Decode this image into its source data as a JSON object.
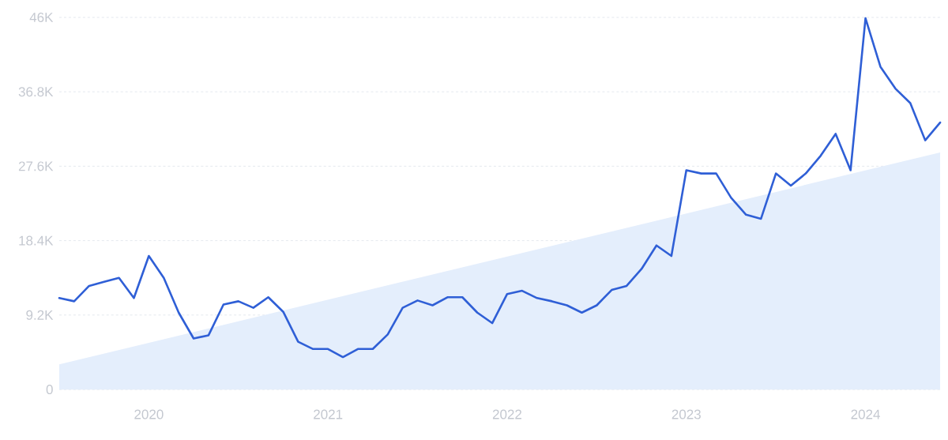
{
  "chart_data": {
    "type": "line",
    "x": [
      "2019-07",
      "2019-08",
      "2019-09",
      "2019-10",
      "2019-11",
      "2019-12",
      "2020-01",
      "2020-02",
      "2020-03",
      "2020-04",
      "2020-05",
      "2020-06",
      "2020-07",
      "2020-08",
      "2020-09",
      "2020-10",
      "2020-11",
      "2020-12",
      "2021-01",
      "2021-02",
      "2021-03",
      "2021-04",
      "2021-05",
      "2021-06",
      "2021-07",
      "2021-08",
      "2021-09",
      "2021-10",
      "2021-11",
      "2021-12",
      "2022-01",
      "2022-02",
      "2022-03",
      "2022-04",
      "2022-05",
      "2022-06",
      "2022-07",
      "2022-08",
      "2022-09",
      "2022-10",
      "2022-11",
      "2022-12",
      "2023-01",
      "2023-02",
      "2023-03",
      "2023-04",
      "2023-05",
      "2023-06",
      "2023-07",
      "2023-08",
      "2023-09",
      "2023-10",
      "2023-11",
      "2023-12",
      "2024-01",
      "2024-02",
      "2024-03",
      "2024-04",
      "2024-05",
      "2024-06"
    ],
    "series": [
      {
        "type": "area",
        "color": "#e4eefc",
        "x": [
          "2019-07",
          "2024-06"
        ],
        "values": [
          3100,
          29300
        ]
      },
      {
        "color": "#2f5fd6",
        "values": [
          11300,
          10900,
          12800,
          13300,
          13800,
          11300,
          16500,
          13800,
          9500,
          6300,
          6700,
          10500,
          10900,
          10100,
          11400,
          9600,
          5900,
          5000,
          5000,
          4000,
          5000,
          5000,
          6800,
          10100,
          11000,
          10400,
          11400,
          11400,
          9500,
          8200,
          11800,
          12200,
          11300,
          10900,
          10400,
          9500,
          10400,
          12300,
          12800,
          14900,
          17800,
          16500,
          27100,
          26700,
          26700,
          23700,
          21600,
          21100,
          26700,
          25200,
          26700,
          28900,
          31600,
          27100,
          45900,
          39900,
          37200,
          35400,
          30800,
          33000
        ]
      }
    ],
    "xlim": [
      "2019-07",
      "2024-06"
    ],
    "xticks": [
      {
        "value": "2020-01",
        "label": "2020"
      },
      {
        "value": "2021-01",
        "label": "2021"
      },
      {
        "value": "2022-01",
        "label": "2022"
      },
      {
        "value": "2023-01",
        "label": "2023"
      },
      {
        "value": "2024-01",
        "label": "2024"
      }
    ],
    "ylim": [
      0,
      46000
    ],
    "yticks": [
      {
        "value": 0,
        "label": "0"
      },
      {
        "value": 9200,
        "label": "9.2K"
      },
      {
        "value": 18400,
        "label": "18.4K"
      },
      {
        "value": 27600,
        "label": "27.6K"
      },
      {
        "value": 36800,
        "label": "36.8K"
      },
      {
        "value": 46000,
        "label": "46K"
      }
    ],
    "grid": "y",
    "marker": "none",
    "line_style": "solid"
  }
}
